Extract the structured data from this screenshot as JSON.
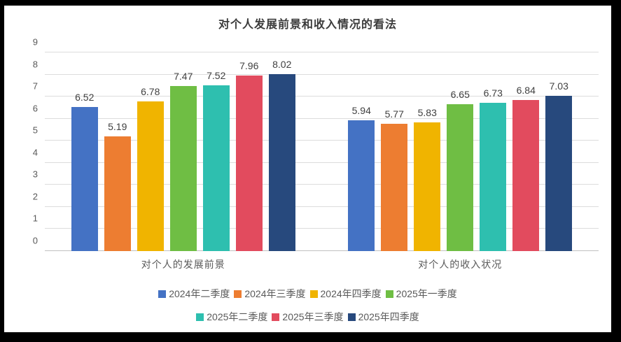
{
  "chart_data": {
    "type": "bar",
    "title": "对个人发展前景和收入情况的看法",
    "categories": [
      "对个人的发展前景",
      "对个人的收入状况"
    ],
    "series": [
      {
        "name": "2024年二季度",
        "color": "#4472C4",
        "values": [
          6.52,
          5.94
        ]
      },
      {
        "name": "2024年三季度",
        "color": "#ED7D31",
        "values": [
          5.19,
          5.77
        ]
      },
      {
        "name": "2024年四季度",
        "color": "#F0B400",
        "values": [
          6.78,
          5.83
        ]
      },
      {
        "name": "2025年一季度",
        "color": "#6FBE44",
        "values": [
          7.47,
          6.65
        ]
      },
      {
        "name": "2025年二季度",
        "color": "#2EBFAF",
        "values": [
          7.52,
          6.73
        ]
      },
      {
        "name": "2025年三季度",
        "color": "#E24B5E",
        "values": [
          7.96,
          6.84
        ]
      },
      {
        "name": "2025年四季度",
        "color": "#27497D",
        "values": [
          8.02,
          7.03
        ]
      }
    ],
    "y_axis": {
      "min": 0,
      "max": 9,
      "step": 1,
      "ticks": [
        "0",
        "1",
        "2",
        "3",
        "4",
        "5",
        "6",
        "7",
        "8",
        "9"
      ]
    },
    "grid": true,
    "value_labels": true,
    "value_label_format": "2dp",
    "legend_position": "bottom",
    "legend_rows": 2
  }
}
